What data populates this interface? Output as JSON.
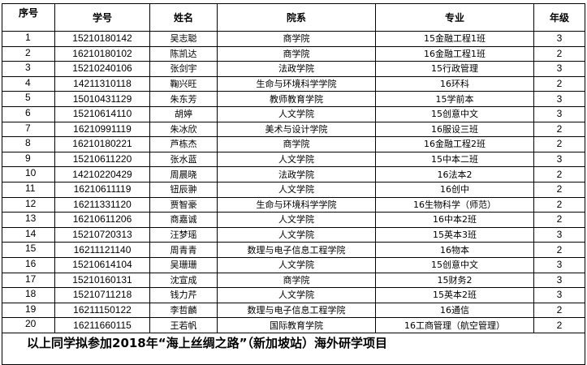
{
  "headers": [
    "序号",
    "学号",
    "姓名",
    "院系",
    "专业",
    "年级"
  ],
  "rows": [
    [
      "1",
      "15210180142",
      "吴志聪",
      "商学院",
      "15金融工程1班",
      "3"
    ],
    [
      "2",
      "16210180102",
      "陈凯达",
      "商学院",
      "16金融工程1班",
      "2"
    ],
    [
      "3",
      "15210240106",
      "张剑宇",
      "法政学院",
      "15行政管理",
      "3"
    ],
    [
      "4",
      "14211310118",
      "鞠兴旺",
      "生命与环境科学学院",
      "16环科",
      "2"
    ],
    [
      "5",
      "15010431129",
      "朱东芳",
      "教师教育学院",
      "15学前本",
      "3"
    ],
    [
      "6",
      "15210614110",
      "胡婷",
      "人文学院",
      "15创意中文",
      "3"
    ],
    [
      "7",
      "16210991119",
      "朱冰欣",
      "美术与设计学院",
      "16服设三班",
      "2"
    ],
    [
      "8",
      "16210180221",
      "芦栋杰",
      "商学院",
      "16金融工程2班",
      "2"
    ],
    [
      "9",
      "15210611220",
      "张水蓝",
      "人文学院",
      "15中本二班",
      "3"
    ],
    [
      "10",
      "14210220429",
      "周晨晓",
      "法政学院",
      "16法本2",
      "2"
    ],
    [
      "11",
      "16210611119",
      "钮辰翀",
      "人文学院",
      "16创中",
      "2"
    ],
    [
      "12",
      "16211331120",
      "贾智豪",
      "生命与环境科学学院",
      "16生物科学（师范）",
      "2"
    ],
    [
      "13",
      "16210611206",
      "商嘉诚",
      "人文学院",
      "16中本2班",
      "2"
    ],
    [
      "14",
      "15210720313",
      "汪梦瑶",
      "人文学院",
      "15英本3班",
      "3"
    ],
    [
      "15",
      "16211121140",
      "周青青",
      "数理与电子信息工程学院",
      "16物本",
      "2"
    ],
    [
      "16",
      "15210614104",
      "吴珊珊",
      "人文学院",
      "15创意中文",
      "3"
    ],
    [
      "17",
      "15210160131",
      "沈宣成",
      "商学院",
      "15财务2",
      "3"
    ],
    [
      "18",
      "15210711218",
      "钱力芹",
      "人文学院",
      "15英本2班",
      "3"
    ],
    [
      "19",
      "16211150122",
      "李哲麟",
      "数理与电子信息工程学院",
      "16通信",
      "2"
    ],
    [
      "20",
      "16211660115",
      "王若帆",
      "国际教育学院",
      "16工商管理（航空管理）",
      "2"
    ]
  ],
  "footer": "以上同学拟参加2018年“海上丝绸之路”（新加坡站）海外研学项目"
}
